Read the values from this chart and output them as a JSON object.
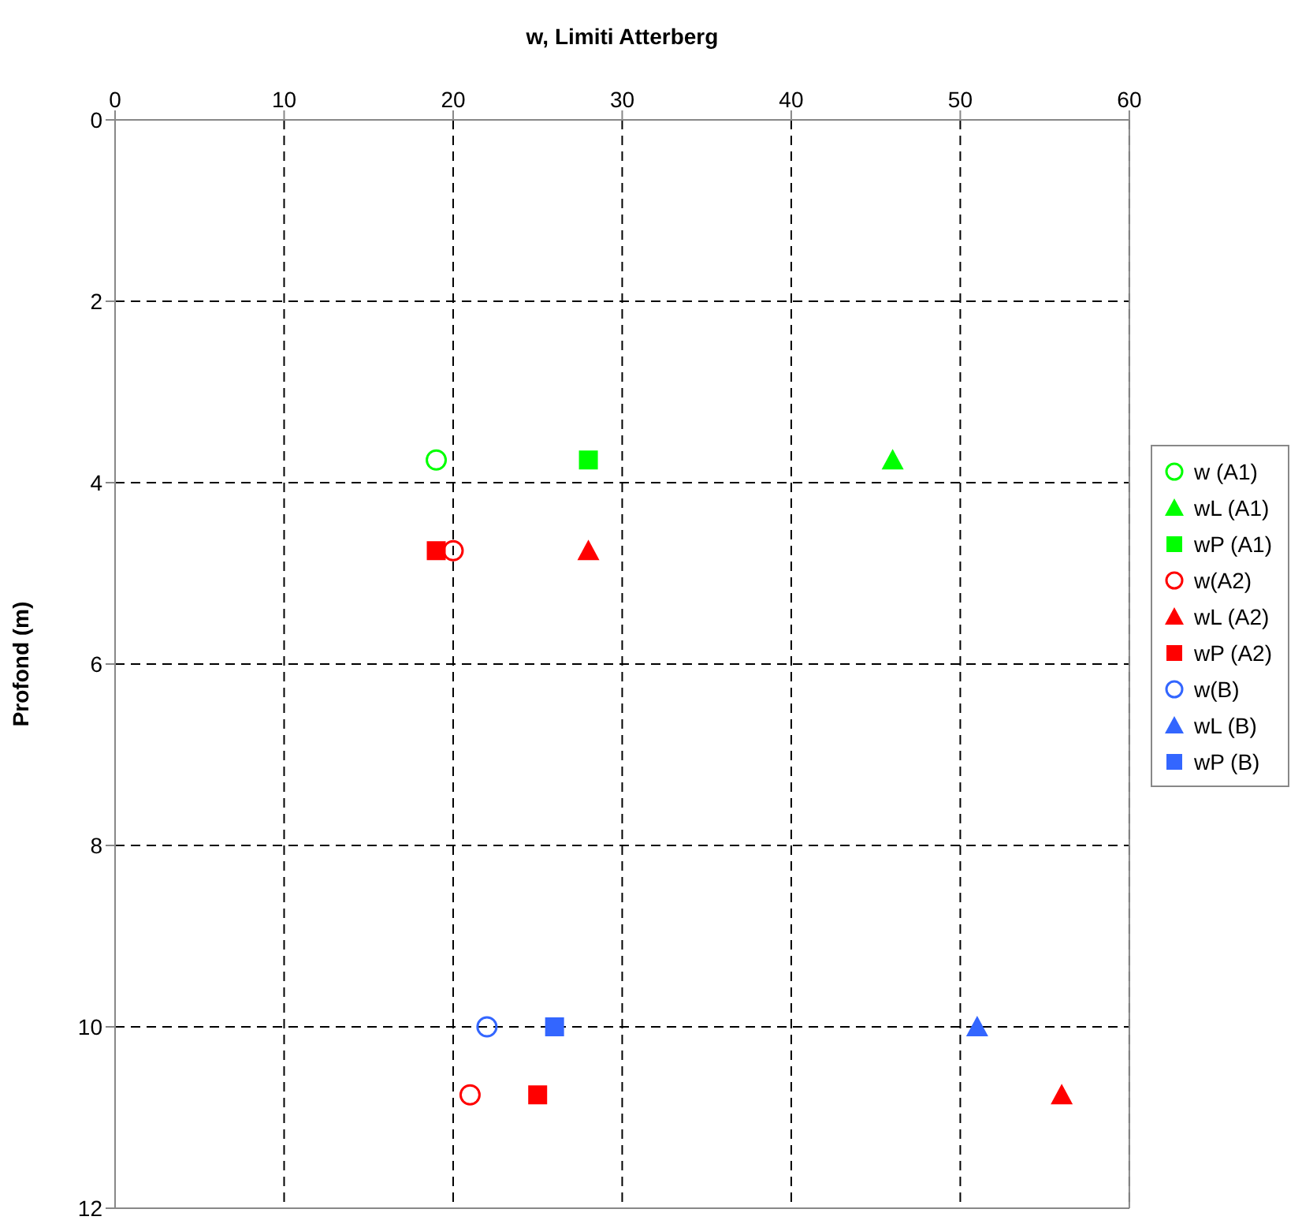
{
  "chart_data": {
    "type": "scatter",
    "xlabel": "w, Limiti Atterberg",
    "ylabel": "Profond (m)",
    "xlim": [
      0,
      60
    ],
    "xticks": [
      0,
      10,
      20,
      30,
      40,
      50,
      60
    ],
    "ylim": [
      12,
      0
    ],
    "yticks": [
      0,
      2,
      4,
      6,
      8,
      10,
      12
    ],
    "grid": true,
    "legend": "right",
    "series": [
      {
        "name": "w (A1)",
        "color": "#00ff00",
        "marker": "circle",
        "x": [
          19
        ],
        "values": [
          3.75
        ]
      },
      {
        "name": "wL (A1)",
        "color": "#00ff00",
        "marker": "triangle",
        "x": [
          46
        ],
        "values": [
          3.75
        ]
      },
      {
        "name": "wP (A1)",
        "color": "#00ff00",
        "marker": "square",
        "x": [
          28
        ],
        "values": [
          3.75
        ]
      },
      {
        "name": "w(A2)",
        "color": "#ff0000",
        "marker": "circle",
        "x": [
          20,
          21
        ],
        "values": [
          4.75,
          10.75
        ]
      },
      {
        "name": "wL (A2)",
        "color": "#ff0000",
        "marker": "triangle",
        "x": [
          28,
          56
        ],
        "values": [
          4.75,
          10.75
        ]
      },
      {
        "name": "wP (A2)",
        "color": "#ff0000",
        "marker": "square",
        "x": [
          19,
          25
        ],
        "values": [
          4.75,
          10.75
        ]
      },
      {
        "name": "w(B)",
        "color": "#3366ff",
        "marker": "circle",
        "x": [
          22
        ],
        "values": [
          10
        ]
      },
      {
        "name": "wL (B)",
        "color": "#3366ff",
        "marker": "triangle",
        "x": [
          51
        ],
        "values": [
          10
        ]
      },
      {
        "name": "wP (B)",
        "color": "#3366ff",
        "marker": "square",
        "x": [
          26
        ],
        "values": [
          10
        ]
      }
    ]
  }
}
